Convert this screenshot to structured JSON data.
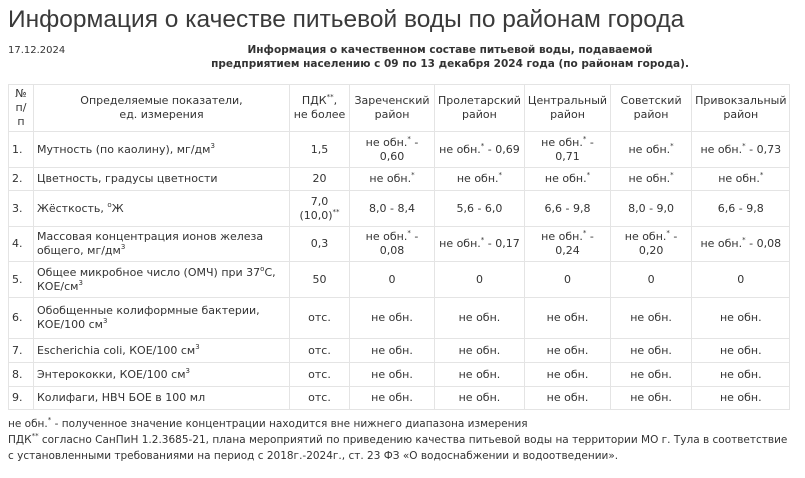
{
  "title": "Информация о качестве питьевой воды по районам города",
  "date": "17.12.2024",
  "subtitle_line1": "Информация о качественном составе питьевой воды, подаваемой",
  "subtitle_line2": "предприятием населению с 09 по 13 декабря 2024 года (по районам города).",
  "table": {
    "headers": [
      {
        "pre": "№ п/ п"
      },
      {
        "pre": "Определяемые показатели,",
        "post2": "ед. измерения"
      },
      {
        "pre": "ПДК",
        "sup": "**",
        "post": ",",
        "post2": "не более"
      },
      {
        "pre": "Зареченский район"
      },
      {
        "pre": "Пролетарский район"
      },
      {
        "pre": "Центральный район"
      },
      {
        "pre": "Советский район"
      },
      {
        "pre": "Привокзальный район"
      }
    ],
    "rows": [
      [
        {
          "pre": "1."
        },
        {
          "pre": "Мутность (по каолину), мг/дм",
          "sup": "3"
        },
        {
          "pre": "1,5"
        },
        {
          "pre": "не обн.",
          "sup": "*",
          "post": " - 0,60"
        },
        {
          "pre": "не обн.",
          "sup": "*",
          "post": " - 0,69"
        },
        {
          "pre": "не обн.",
          "sup": "*",
          "post": " - 0,71"
        },
        {
          "pre": "не обн.",
          "sup": "*"
        },
        {
          "pre": "не обн.",
          "sup": "*",
          "post": " - 0,73"
        }
      ],
      [
        {
          "pre": "2."
        },
        {
          "pre": "Цветность, градусы цветности"
        },
        {
          "pre": "20"
        },
        {
          "pre": "не обн.",
          "sup": "*"
        },
        {
          "pre": "не обн.",
          "sup": "*"
        },
        {
          "pre": "не обн.",
          "sup": "*"
        },
        {
          "pre": "не обн.",
          "sup": "*"
        },
        {
          "pre": "не обн.",
          "sup": "*"
        }
      ],
      [
        {
          "pre": "3."
        },
        {
          "pre": "Жёсткость, ",
          "sup": "о",
          "post": "Ж"
        },
        {
          "pre": "7,0 (10,0)",
          "sup": "**"
        },
        {
          "pre": "8,0 - 8,4"
        },
        {
          "pre": "5,6 - 6,0"
        },
        {
          "pre": "6,6 - 9,8"
        },
        {
          "pre": "8,0 - 9,0"
        },
        {
          "pre": "6,6 - 9,8"
        }
      ],
      [
        {
          "pre": "4."
        },
        {
          "pre": "Массовая концентрация ионов железа общего, мг/дм",
          "sup": "3"
        },
        {
          "pre": "0,3"
        },
        {
          "pre": "не обн.",
          "sup": "*",
          "post": " - 0,08"
        },
        {
          "pre": "не обн.",
          "sup": "*",
          "post": " - 0,17"
        },
        {
          "pre": "не обн.",
          "sup": "*",
          "post": " - 0,24"
        },
        {
          "pre": "не обн.",
          "sup": "*",
          "post": " - 0,20"
        },
        {
          "pre": "не обн.",
          "sup": "*",
          "post": " - 0,08"
        }
      ],
      [
        {
          "pre": "5."
        },
        {
          "pre": "Общее микробное число (ОМЧ) при 37",
          "sup": "о",
          "post": "С, КОЕ/см",
          "sup2": "3"
        },
        {
          "pre": "50"
        },
        {
          "pre": "0"
        },
        {
          "pre": "0"
        },
        {
          "pre": "0"
        },
        {
          "pre": "0"
        },
        {
          "pre": "0"
        }
      ],
      [
        {
          "pre": "6."
        },
        {
          "pre": "Обобщенные колиформные бактерии, КОЕ/100 см",
          "sup": "3"
        },
        {
          "pre": "отс."
        },
        {
          "pre": "не обн."
        },
        {
          "pre": "не обн."
        },
        {
          "pre": "не обн."
        },
        {
          "pre": "не обн."
        },
        {
          "pre": "не обн."
        }
      ],
      [
        {
          "pre": "7."
        },
        {
          "pre": "Escherichia coli, КОЕ/100 см",
          "sup": "3"
        },
        {
          "pre": "отс."
        },
        {
          "pre": "не обн."
        },
        {
          "pre": "не обн."
        },
        {
          "pre": "не обн."
        },
        {
          "pre": "не обн."
        },
        {
          "pre": "не обн."
        }
      ],
      [
        {
          "pre": "8."
        },
        {
          "pre": "Энтерококки, КОЕ/100 см",
          "sup": "3"
        },
        {
          "pre": "отс."
        },
        {
          "pre": "не обн."
        },
        {
          "pre": "не обн."
        },
        {
          "pre": "не обн."
        },
        {
          "pre": "не обн."
        },
        {
          "pre": "не обн."
        }
      ],
      [
        {
          "pre": "9."
        },
        {
          "pre": "Колифаги, НВЧ БОЕ в 100 мл"
        },
        {
          "pre": "отс."
        },
        {
          "pre": "не обн."
        },
        {
          "pre": "не обн."
        },
        {
          "pre": "не обн."
        },
        {
          "pre": "не обн."
        },
        {
          "pre": "не обн."
        }
      ]
    ]
  },
  "notes": {
    "n1_pre": "не обн.",
    "n1_sup": "*",
    "n1_text": " - полученное значение концентрации находится вне нижнего диапазона измерения",
    "n2_pre": "ПДК",
    "n2_sup": "**",
    "n2_text": " согласно СанПиН 1.2.3685-21, плана мероприятий по приведению качества питьевой воды на территории МО г. Тула в соответствие с установленными требованиями на период с 2018г.-2024г., ст. 23 ФЗ «О водоснабжении и водоотведении»."
  }
}
